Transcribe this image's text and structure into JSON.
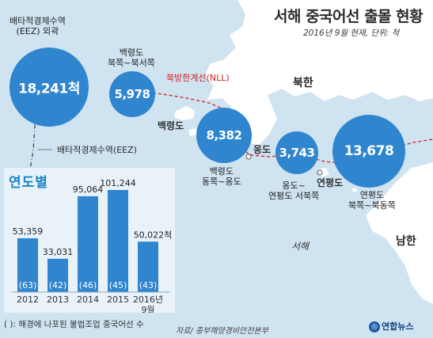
{
  "title": "서해 중국어선 출몰 현황",
  "subtitle": "2016년 9월 현재, 단위: 척",
  "map_labels": {
    "eez_outer": "배타적경제수역\n(EEZ) 외곽",
    "eez": "배타적경제수역(EEZ)",
    "nll": "북방한계선(NLL)",
    "baengnyeong": "백령도",
    "yeonpyeong": "연평도",
    "ongdo": "옹도",
    "north_korea": "북한",
    "south_korea": "남한",
    "west_sea": "서해"
  },
  "regions": [
    {
      "label": "배타적경제수역\n(EEZ) 외곽",
      "value_text": "18,241척"
    },
    {
      "label": "백령도\n북쪽~북서쪽",
      "value_text": "5,978"
    },
    {
      "label": "백령도\n동쪽~옹도",
      "value_text": "8,382"
    },
    {
      "label": "옹도~\n연평도 서북쪽",
      "value_text": "3,743"
    },
    {
      "label": "연평도\n북쪽~북동쪽",
      "value_text": "13,678"
    }
  ],
  "yearly": {
    "heading": "연도별",
    "footnote": "(   ): 해경에 나포된 불법조업 중국어선 수"
  },
  "source": "자료/ 중부해양경비안전본부",
  "logo": "연합뉴스",
  "chart_data": [
    {
      "type": "bubble",
      "title": "서해 중국어선 출몰 현황",
      "subtitle": "2016년 9월 현재, 단위: 척",
      "unit": "척",
      "categories": [
        "배타적경제수역(EEZ) 외곽",
        "백령도 북쪽~북서쪽",
        "백령도 동쪽~옹도",
        "옹도~연평도 서북쪽",
        "연평도 북쪽~북동쪽"
      ],
      "values": [
        18241,
        5978,
        8382,
        3743,
        13678
      ]
    },
    {
      "type": "bar",
      "title": "연도별",
      "categories": [
        "2012",
        "2013",
        "2014",
        "2015",
        "2016년\n9월"
      ],
      "series": [
        {
          "values": [
            53359,
            33031,
            95064,
            101244,
            50022
          ]
        },
        {
          "values": [
            63,
            42,
            46,
            45,
            43
          ]
        }
      ],
      "value_labels": [
        "53,359",
        "33,031",
        "95,064",
        "101,244",
        "50,022척"
      ],
      "seized_labels": [
        "(63)",
        "(42)",
        "(46)",
        "(45)",
        "(43)"
      ],
      "note": "(   ): 해경에 나포된 불법조업 중국어선 수",
      "ylim": [
        0,
        101244
      ]
    }
  ],
  "colors": {
    "bubble": "#2f86cf",
    "bar": "#2f86cf",
    "nll": "#d21f1f",
    "sea": "#cfe3f1",
    "land": "#ffffff",
    "panel": "#e9f2f9"
  }
}
